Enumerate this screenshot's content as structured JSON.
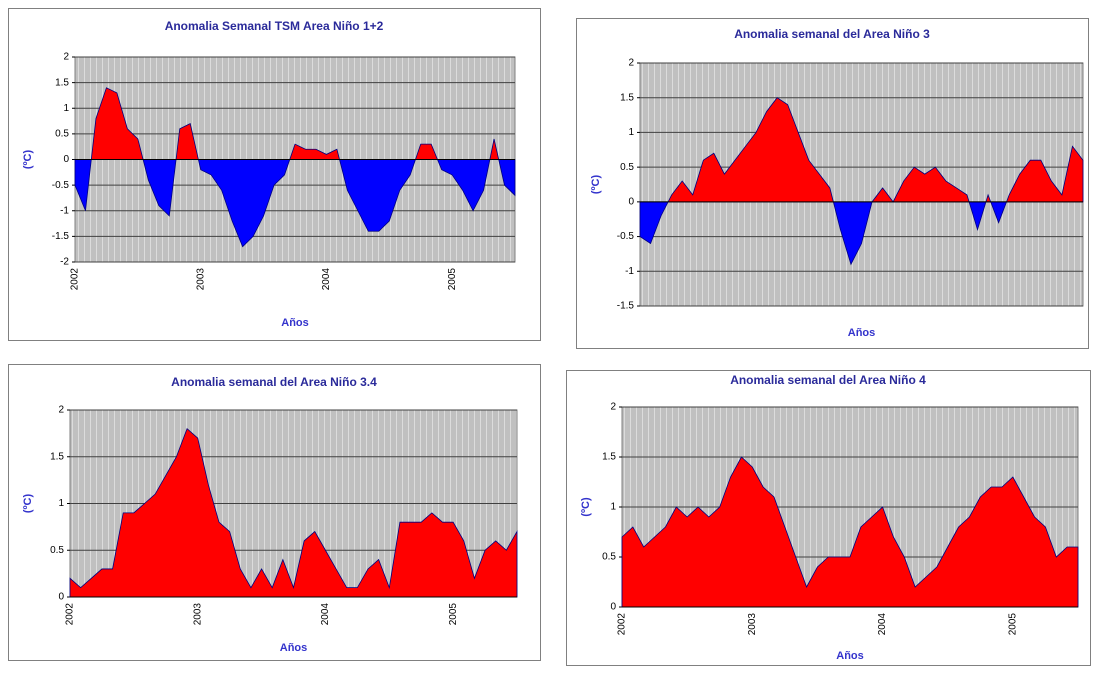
{
  "chart_data": [
    {
      "type": "area",
      "title": "Anomalia Semanal TSM Area Niño 1+2",
      "xlabel": "Años",
      "ylabel": "(ºC)",
      "categories": [
        "2002",
        null,
        null,
        null,
        null,
        null,
        null,
        null,
        null,
        null,
        null,
        null,
        "2003",
        null,
        null,
        null,
        null,
        null,
        null,
        null,
        null,
        null,
        null,
        null,
        "2004",
        null,
        null,
        null,
        null,
        null,
        null,
        null,
        null,
        null,
        null,
        null,
        "2005",
        null,
        null,
        null,
        null,
        null,
        null
      ],
      "values": [
        -0.5,
        -1.0,
        0.8,
        1.4,
        1.3,
        0.6,
        0.4,
        -0.4,
        -0.9,
        -1.1,
        0.6,
        0.7,
        -0.2,
        -0.3,
        -0.6,
        -1.2,
        -1.7,
        -1.5,
        -1.1,
        -0.5,
        -0.3,
        0.3,
        0.2,
        0.2,
        0.1,
        0.2,
        -0.6,
        -1.0,
        -1.4,
        -1.4,
        -1.2,
        -0.6,
        -0.3,
        0.3,
        0.3,
        -0.2,
        -0.3,
        -0.6,
        -1.0,
        -0.6,
        0.4,
        -0.5,
        -0.7
      ],
      "colors": {
        "positive": "#ff0000",
        "negative": "#0000ff"
      },
      "ylim": [
        -2,
        2
      ],
      "yticks": [
        -2,
        -1.5,
        -1,
        -0.5,
        0,
        0.5,
        1,
        1.5,
        2
      ],
      "grid": true
    },
    {
      "type": "area",
      "title": "Anomalia semanal del Area Niño 3",
      "xlabel": "Años",
      "ylabel": "(ºC)",
      "values": [
        -0.5,
        -0.6,
        -0.2,
        0.1,
        0.3,
        0.1,
        0.6,
        0.7,
        0.4,
        0.6,
        0.8,
        1.0,
        1.3,
        1.5,
        1.4,
        1.0,
        0.6,
        0.4,
        0.2,
        -0.4,
        -0.9,
        -0.6,
        0.0,
        0.2,
        0.0,
        0.3,
        0.5,
        0.4,
        0.5,
        0.3,
        0.2,
        0.1,
        -0.4,
        0.1,
        -0.3,
        0.1,
        0.4,
        0.6,
        0.6,
        0.3,
        0.1,
        0.8,
        0.6
      ],
      "colors": {
        "positive": "#ff0000",
        "negative": "#0000ff"
      },
      "ylim": [
        -1.5,
        2
      ],
      "yticks": [
        -1.5,
        -1,
        -0.5,
        0,
        0.5,
        1,
        1.5,
        2
      ],
      "grid": true
    },
    {
      "type": "area",
      "title": "Anomalia semanal del Area Niño 3.4",
      "xlabel": "Años",
      "ylabel": "(ºC)",
      "categories": [
        "2002",
        null,
        null,
        null,
        null,
        null,
        null,
        null,
        null,
        null,
        null,
        null,
        "2003",
        null,
        null,
        null,
        null,
        null,
        null,
        null,
        null,
        null,
        null,
        null,
        "2004",
        null,
        null,
        null,
        null,
        null,
        null,
        null,
        null,
        null,
        null,
        null,
        "2005",
        null,
        null,
        null,
        null,
        null,
        null
      ],
      "values": [
        0.2,
        0.1,
        0.2,
        0.3,
        0.3,
        0.9,
        0.9,
        1.0,
        1.1,
        1.3,
        1.5,
        1.8,
        1.7,
        1.2,
        0.8,
        0.7,
        0.3,
        0.1,
        0.3,
        0.1,
        0.4,
        0.1,
        0.6,
        0.7,
        0.5,
        0.3,
        0.1,
        0.1,
        0.3,
        0.4,
        0.1,
        0.8,
        0.8,
        0.8,
        0.9,
        0.8,
        0.8,
        0.6,
        0.2,
        0.5,
        0.6,
        0.5,
        0.7
      ],
      "colors": {
        "positive": "#ff0000",
        "negative": "#0000ff"
      },
      "ylim": [
        0,
        2
      ],
      "yticks": [
        0,
        0.5,
        1,
        1.5,
        2
      ],
      "grid": true
    },
    {
      "type": "area",
      "title": "Anomalia semanal del Area Niño 4",
      "xlabel": "Años",
      "ylabel": "(ºC)",
      "categories": [
        "2002",
        null,
        null,
        null,
        null,
        null,
        null,
        null,
        null,
        null,
        null,
        null,
        "2003",
        null,
        null,
        null,
        null,
        null,
        null,
        null,
        null,
        null,
        null,
        null,
        "2004",
        null,
        null,
        null,
        null,
        null,
        null,
        null,
        null,
        null,
        null,
        null,
        "2005",
        null,
        null,
        null,
        null,
        null,
        null
      ],
      "values": [
        0.7,
        0.8,
        0.6,
        0.7,
        0.8,
        1.0,
        0.9,
        1.0,
        0.9,
        1.0,
        1.3,
        1.5,
        1.4,
        1.2,
        1.1,
        0.8,
        0.5,
        0.2,
        0.4,
        0.5,
        0.5,
        0.5,
        0.8,
        0.9,
        1.0,
        0.7,
        0.5,
        0.2,
        0.3,
        0.4,
        0.6,
        0.8,
        0.9,
        1.1,
        1.2,
        1.2,
        1.3,
        1.1,
        0.9,
        0.8,
        0.5,
        0.6,
        0.6
      ],
      "colors": {
        "positive": "#ff0000",
        "negative": "#0000ff"
      },
      "ylim": [
        0,
        2
      ],
      "yticks": [
        0,
        0.5,
        1,
        1.5,
        2
      ],
      "grid": true
    }
  ]
}
